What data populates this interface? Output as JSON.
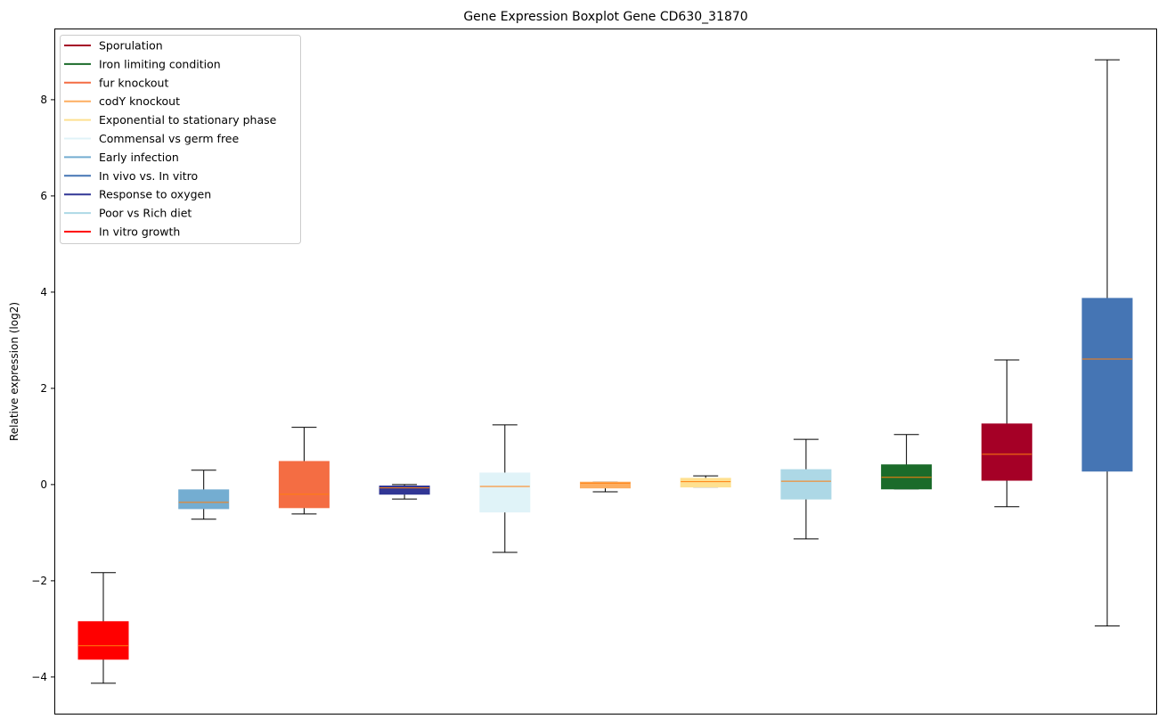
{
  "chart_data": {
    "type": "boxplot",
    "title": "Gene Expression Boxplot Gene CD630_31870",
    "xlabel": "",
    "ylabel": "Relative expression (log2)",
    "ylim": [
      -4.78,
      9.48
    ],
    "yticks": [
      -4,
      -2,
      0,
      2,
      4,
      6,
      8
    ],
    "ytick_labels": [
      "−4",
      "−2",
      "0",
      "2",
      "4",
      "6",
      "8"
    ],
    "grid": false,
    "legend_placement": "top-left",
    "legend": [
      {
        "label": "Sporulation",
        "color": "#a50026"
      },
      {
        "label": "Iron limiting condition",
        "color": "#1b6b2a"
      },
      {
        "label": "fur knockout",
        "color": "#f46d43"
      },
      {
        "label": "codY knockout",
        "color": "#fdae61"
      },
      {
        "label": "Exponential to stationary phase",
        "color": "#fee090"
      },
      {
        "label": "Commensal vs germ free",
        "color": "#e0f3f8"
      },
      {
        "label": "Early infection",
        "color": "#74add1"
      },
      {
        "label": "In vivo vs. In vitro",
        "color": "#4575b4"
      },
      {
        "label": "Response to oxygen",
        "color": "#313695"
      },
      {
        "label": "Poor vs Rich diet",
        "color": "#add8e6"
      },
      {
        "label": "In vitro growth",
        "color": "#ff0000"
      }
    ],
    "median_color": "#ff7f0e",
    "boxes": [
      {
        "name": "In vitro growth",
        "color": "#ff0000",
        "whislo": -4.13,
        "q1": -3.63,
        "med": -3.35,
        "q3": -2.85,
        "whishi": -1.83
      },
      {
        "name": "Early infection",
        "color": "#74add1",
        "whislo": -0.72,
        "q1": -0.5,
        "med": -0.37,
        "q3": -0.11,
        "whishi": 0.3
      },
      {
        "name": "fur knockout",
        "color": "#f46d43",
        "whislo": -0.61,
        "q1": -0.48,
        "med": -0.2,
        "q3": 0.48,
        "whishi": 1.19
      },
      {
        "name": "Response to oxygen",
        "color": "#313695",
        "whislo": -0.3,
        "q1": -0.2,
        "med": -0.07,
        "q3": -0.03,
        "whishi": 0.0
      },
      {
        "name": "Commensal vs germ free",
        "color": "#e0f3f8",
        "whislo": -1.41,
        "q1": -0.57,
        "med": -0.04,
        "q3": 0.24,
        "whishi": 1.24
      },
      {
        "name": "codY knockout",
        "color": "#fdae61",
        "whislo": -0.15,
        "q1": -0.07,
        "med": 0.03,
        "q3": 0.05,
        "whishi": 0.05
      },
      {
        "name": "Exponential to stationary phase",
        "color": "#fee090",
        "whislo": -0.05,
        "q1": -0.05,
        "med": 0.06,
        "q3": 0.13,
        "whishi": 0.18
      },
      {
        "name": "Poor vs Rich diet",
        "color": "#add8e6",
        "whislo": -1.13,
        "q1": -0.3,
        "med": 0.07,
        "q3": 0.31,
        "whishi": 0.94
      },
      {
        "name": "Iron limiting condition",
        "color": "#1b6b2a",
        "whislo": -0.09,
        "q1": -0.09,
        "med": 0.15,
        "q3": 0.41,
        "whishi": 1.04
      },
      {
        "name": "Sporulation",
        "color": "#a50026",
        "whislo": -0.46,
        "q1": 0.09,
        "med": 0.63,
        "q3": 1.26,
        "whishi": 2.59
      },
      {
        "name": "In vivo vs. In vitro",
        "color": "#4575b4",
        "whislo": -2.94,
        "q1": 0.28,
        "med": 2.61,
        "q3": 3.87,
        "whishi": 8.83
      }
    ]
  }
}
